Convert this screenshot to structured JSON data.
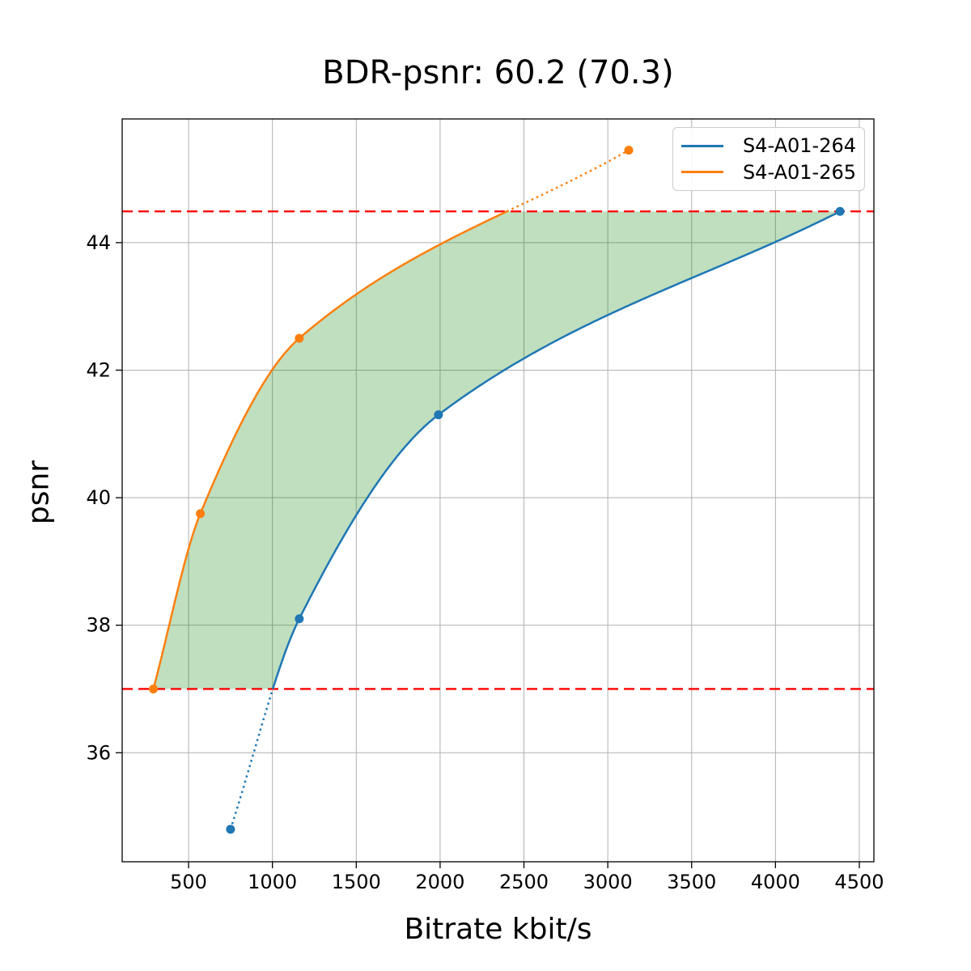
{
  "title": "BDR-psnr: 60.2 (70.3)",
  "chart_data": {
    "type": "line",
    "title": "BDR-psnr: 60.2 (70.3)",
    "xlabel": "Bitrate kbit/s",
    "ylabel": "psnr",
    "xlim": [
      104,
      4587
    ],
    "ylim": [
      34.29,
      45.94
    ],
    "xticks": [
      500,
      1000,
      1500,
      2000,
      2500,
      3000,
      3500,
      4000,
      4500
    ],
    "yticks": [
      36,
      38,
      40,
      42,
      44
    ],
    "grid": true,
    "legend_position": "upper right",
    "series": [
      {
        "name": "S4-A01-264",
        "color": "#1f77b4",
        "points": [
          [
            750,
            34.8
          ],
          [
            1160,
            38.1
          ],
          [
            1990,
            41.3
          ],
          [
            4385,
            44.49
          ]
        ]
      },
      {
        "name": "S4-A01-265",
        "color": "#ff7f0e",
        "points": [
          [
            290,
            37.0
          ],
          [
            570,
            39.75
          ],
          [
            1160,
            42.5
          ],
          [
            3125,
            45.45
          ]
        ]
      }
    ],
    "overlap_lines": {
      "lower": 37.0,
      "upper": 44.49,
      "color": "#ff0000",
      "style": "dashed"
    },
    "fill_between": {
      "upper_series": 1,
      "lower_series": 0,
      "clip": [
        37.0,
        44.49
      ],
      "color": "#008000",
      "opacity": 0.25
    },
    "colors": {
      "grid": "#b0b0b0",
      "spine": "#000000",
      "background": "#ffffff",
      "tick_label": "#000000"
    }
  }
}
